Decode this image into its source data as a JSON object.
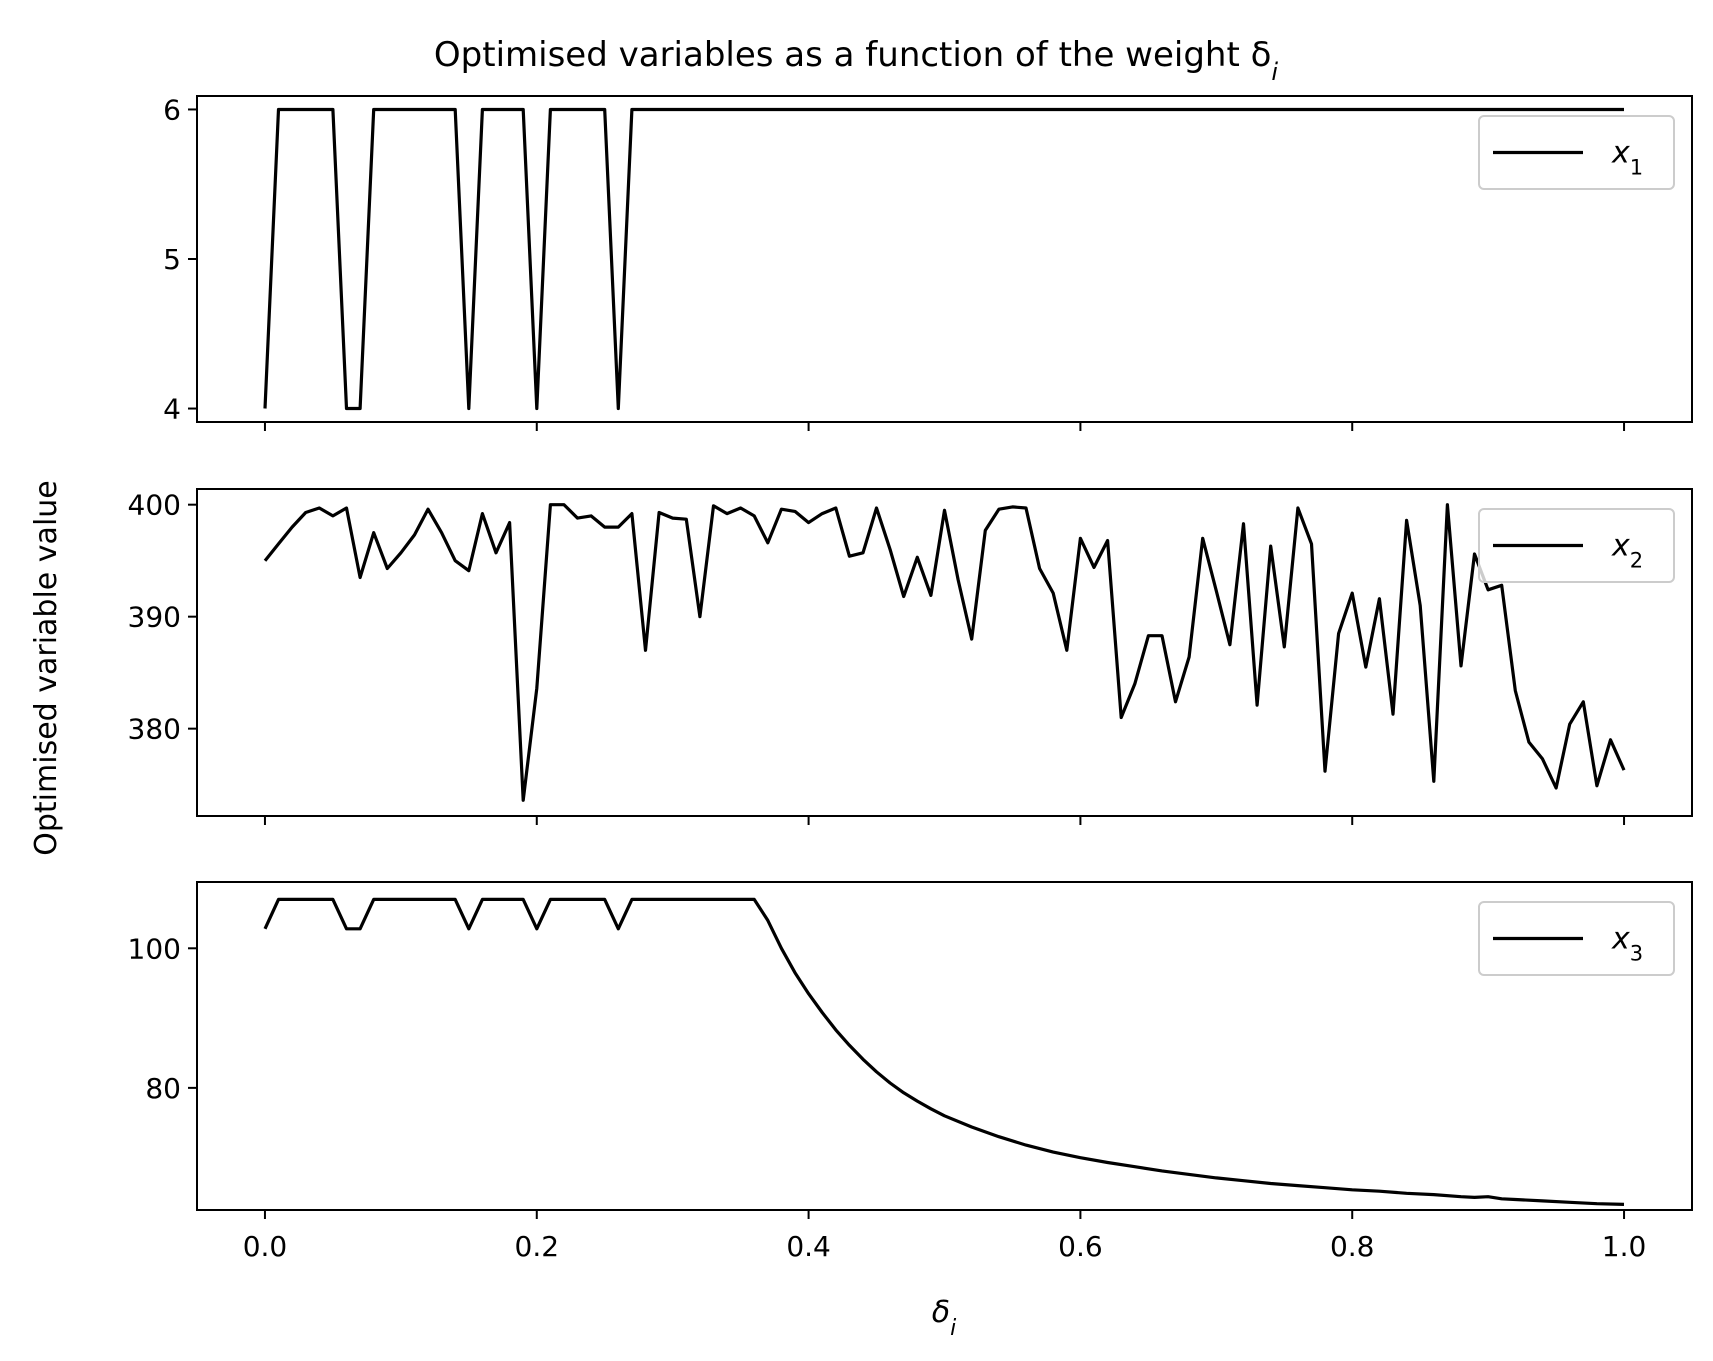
{
  "chart_data": {
    "type": "line",
    "title": "Optimised variables as a function of the weight δ",
    "title_subscript": "i",
    "xlabel": "δ",
    "xlabel_subscript": "i",
    "ylabel": "Optimised variable value",
    "shared_x": true,
    "xlim": [
      -0.05,
      1.05
    ],
    "xticks": [
      0.0,
      0.2,
      0.4,
      0.6,
      0.8,
      1.0
    ],
    "xtick_labels": [
      "0.0",
      "0.2",
      "0.4",
      "0.6",
      "0.8",
      "1.0"
    ],
    "color": "#000000",
    "legend_placement": "upper right",
    "panels": [
      {
        "legend": "x",
        "legend_subscript": "1",
        "ylim": [
          3.91,
          6.09
        ],
        "yticks": [
          4,
          5,
          6
        ],
        "ytick_labels": [
          "4",
          "5",
          "6"
        ],
        "x": [
          0.0,
          0.01,
          0.02,
          0.03,
          0.04,
          0.05,
          0.06,
          0.07,
          0.08,
          0.09,
          0.1,
          0.11,
          0.12,
          0.13,
          0.14,
          0.15,
          0.16,
          0.17,
          0.18,
          0.19,
          0.2,
          0.21,
          0.22,
          0.23,
          0.24,
          0.25,
          0.26,
          0.27,
          0.28,
          1.0
        ],
        "values": [
          4,
          6,
          6,
          6,
          6,
          6,
          4,
          4,
          6,
          6,
          6,
          6,
          6,
          6,
          6,
          4,
          6,
          6,
          6,
          6,
          4,
          6,
          6,
          6,
          6,
          6,
          4,
          6,
          6,
          6
        ]
      },
      {
        "legend": "x",
        "legend_subscript": "2",
        "ylim": [
          372.2,
          401.4
        ],
        "yticks": [
          380,
          390,
          400
        ],
        "ytick_labels": [
          "380",
          "390",
          "400"
        ],
        "x": [
          0.0,
          0.01,
          0.02,
          0.03,
          0.04,
          0.05,
          0.06,
          0.07,
          0.08,
          0.09,
          0.1,
          0.11,
          0.12,
          0.13,
          0.14,
          0.15,
          0.16,
          0.17,
          0.18,
          0.19,
          0.2,
          0.21,
          0.22,
          0.23,
          0.24,
          0.25,
          0.26,
          0.27,
          0.28,
          0.29,
          0.3,
          0.31,
          0.32,
          0.33,
          0.34,
          0.35,
          0.36,
          0.37,
          0.38,
          0.39,
          0.4,
          0.41,
          0.42,
          0.43,
          0.44,
          0.45,
          0.46,
          0.47,
          0.48,
          0.49,
          0.5,
          0.51,
          0.52,
          0.53,
          0.54,
          0.55,
          0.56,
          0.57,
          0.58,
          0.59,
          0.6,
          0.61,
          0.62,
          0.63,
          0.64,
          0.65,
          0.66,
          0.67,
          0.68,
          0.69,
          0.7,
          0.71,
          0.72,
          0.73,
          0.74,
          0.75,
          0.76,
          0.77,
          0.78,
          0.79,
          0.8,
          0.81,
          0.82,
          0.83,
          0.84,
          0.85,
          0.86,
          0.87,
          0.88,
          0.89,
          0.9,
          0.91,
          0.92,
          0.93,
          0.94,
          0.95,
          0.96,
          0.97,
          0.98,
          0.99,
          1.0
        ],
        "values": [
          395,
          396.5,
          398,
          399.3,
          399.7,
          399,
          399.7,
          393.5,
          397.5,
          394.3,
          395.7,
          397.3,
          399.6,
          397.5,
          395,
          394.1,
          399.2,
          395.7,
          398.4,
          373.6,
          383.6,
          400,
          400,
          398.8,
          399,
          398,
          398,
          399.2,
          387,
          399.3,
          398.8,
          398.7,
          390,
          399.9,
          399.2,
          399.7,
          399,
          396.6,
          399.6,
          399.4,
          398.4,
          399.2,
          399.7,
          395.4,
          395.7,
          399.7,
          396,
          391.8,
          395.3,
          391.9,
          399.5,
          393.3,
          388,
          397.7,
          399.6,
          399.8,
          399.7,
          394.3,
          392.1,
          387,
          397,
          394.4,
          396.8,
          381,
          384,
          388.3,
          388.3,
          382.4,
          386.4,
          397,
          392.3,
          387.5,
          398.3,
          382.1,
          396.3,
          387.3,
          399.7,
          396.5,
          376.2,
          388.5,
          392.1,
          385.5,
          391.6,
          381.3,
          398.6,
          391,
          375.3,
          400,
          385.6,
          395.6,
          392.4,
          392.8,
          383.4,
          378.8,
          377.3,
          374.7,
          380.4,
          382.4,
          374.9,
          379,
          376.3
        ]
      },
      {
        "legend": "x",
        "legend_subscript": "3",
        "ylim": [
          62.5,
          109.5
        ],
        "yticks": [
          80,
          100
        ],
        "ytick_labels": [
          "80",
          "100"
        ],
        "x": [
          0.0,
          0.01,
          0.02,
          0.03,
          0.04,
          0.05,
          0.06,
          0.07,
          0.08,
          0.09,
          0.1,
          0.11,
          0.12,
          0.13,
          0.14,
          0.15,
          0.16,
          0.17,
          0.18,
          0.19,
          0.2,
          0.21,
          0.22,
          0.23,
          0.24,
          0.25,
          0.26,
          0.27,
          0.28,
          0.29,
          0.3,
          0.31,
          0.32,
          0.33,
          0.34,
          0.35,
          0.36,
          0.37,
          0.38,
          0.39,
          0.4,
          0.41,
          0.42,
          0.43,
          0.44,
          0.45,
          0.46,
          0.47,
          0.48,
          0.49,
          0.5,
          0.52,
          0.54,
          0.56,
          0.58,
          0.6,
          0.62,
          0.64,
          0.66,
          0.68,
          0.7,
          0.72,
          0.74,
          0.76,
          0.78,
          0.8,
          0.82,
          0.84,
          0.86,
          0.88,
          0.89,
          0.9,
          0.91,
          0.92,
          0.94,
          0.96,
          0.98,
          1.0
        ],
        "values": [
          102.8,
          107,
          107,
          107,
          107,
          107,
          102.8,
          102.8,
          107,
          107,
          107,
          107,
          107,
          107,
          107,
          102.8,
          107,
          107,
          107,
          107,
          102.8,
          107,
          107,
          107,
          107,
          107,
          102.8,
          107,
          107,
          107,
          107,
          107,
          107,
          107,
          107,
          107,
          107,
          104,
          100,
          96.5,
          93.5,
          90.8,
          88.3,
          86.1,
          84.1,
          82.3,
          80.7,
          79.3,
          78.1,
          77,
          76,
          74.4,
          73,
          71.8,
          70.8,
          70,
          69.3,
          68.7,
          68.1,
          67.6,
          67.1,
          66.7,
          66.3,
          66,
          65.7,
          65.4,
          65.2,
          64.9,
          64.7,
          64.4,
          64.3,
          64.4,
          64.1,
          64,
          63.8,
          63.6,
          63.4,
          63.3
        ]
      }
    ]
  }
}
